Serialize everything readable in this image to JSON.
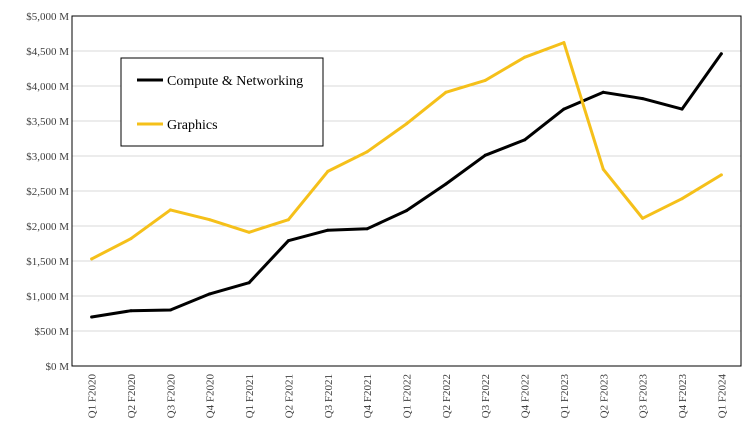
{
  "chart_data": {
    "type": "line",
    "title": "",
    "xlabel": "",
    "ylabel": "",
    "categories": [
      "Q1 F2020",
      "Q2 F2020",
      "Q3 F2020",
      "Q4 F2020",
      "Q1 F2021",
      "Q2 F2021",
      "Q3 F2021",
      "Q4 F2021",
      "Q1 F2022",
      "Q2 F2022",
      "Q3 F2022",
      "Q4 F2022",
      "Q1 F2023",
      "Q2 F2023",
      "Q3 F2023",
      "Q4 F2023",
      "Q1 F2024"
    ],
    "ylim": [
      0,
      5000
    ],
    "y_ticks": [
      0,
      500,
      1000,
      1500,
      2000,
      2500,
      3000,
      3500,
      4000,
      4500,
      5000
    ],
    "y_tick_labels": [
      "$0 M",
      "$500 M",
      "$1,000 M",
      "$1,500 M",
      "$2,000 M",
      "$2,500 M",
      "$3,000 M",
      "$3,500 M",
      "$4,000 M",
      "$4,500 M",
      "$5,000 M"
    ],
    "grid": true,
    "legend_position": "top-left",
    "series": [
      {
        "name": "Compute & Networking",
        "color": "#000000",
        "values": [
          700,
          790,
          800,
          1030,
          1190,
          1790,
          1940,
          1960,
          2220,
          2600,
          3010,
          3230,
          3670,
          3910,
          3820,
          3670,
          4460
        ]
      },
      {
        "name": "Graphics",
        "color": "#f5c01a",
        "values": [
          1530,
          1820,
          2230,
          2090,
          1910,
          2090,
          2780,
          3060,
          3460,
          3910,
          4080,
          4410,
          4620,
          2810,
          2110,
          2390,
          2730
        ]
      }
    ]
  }
}
